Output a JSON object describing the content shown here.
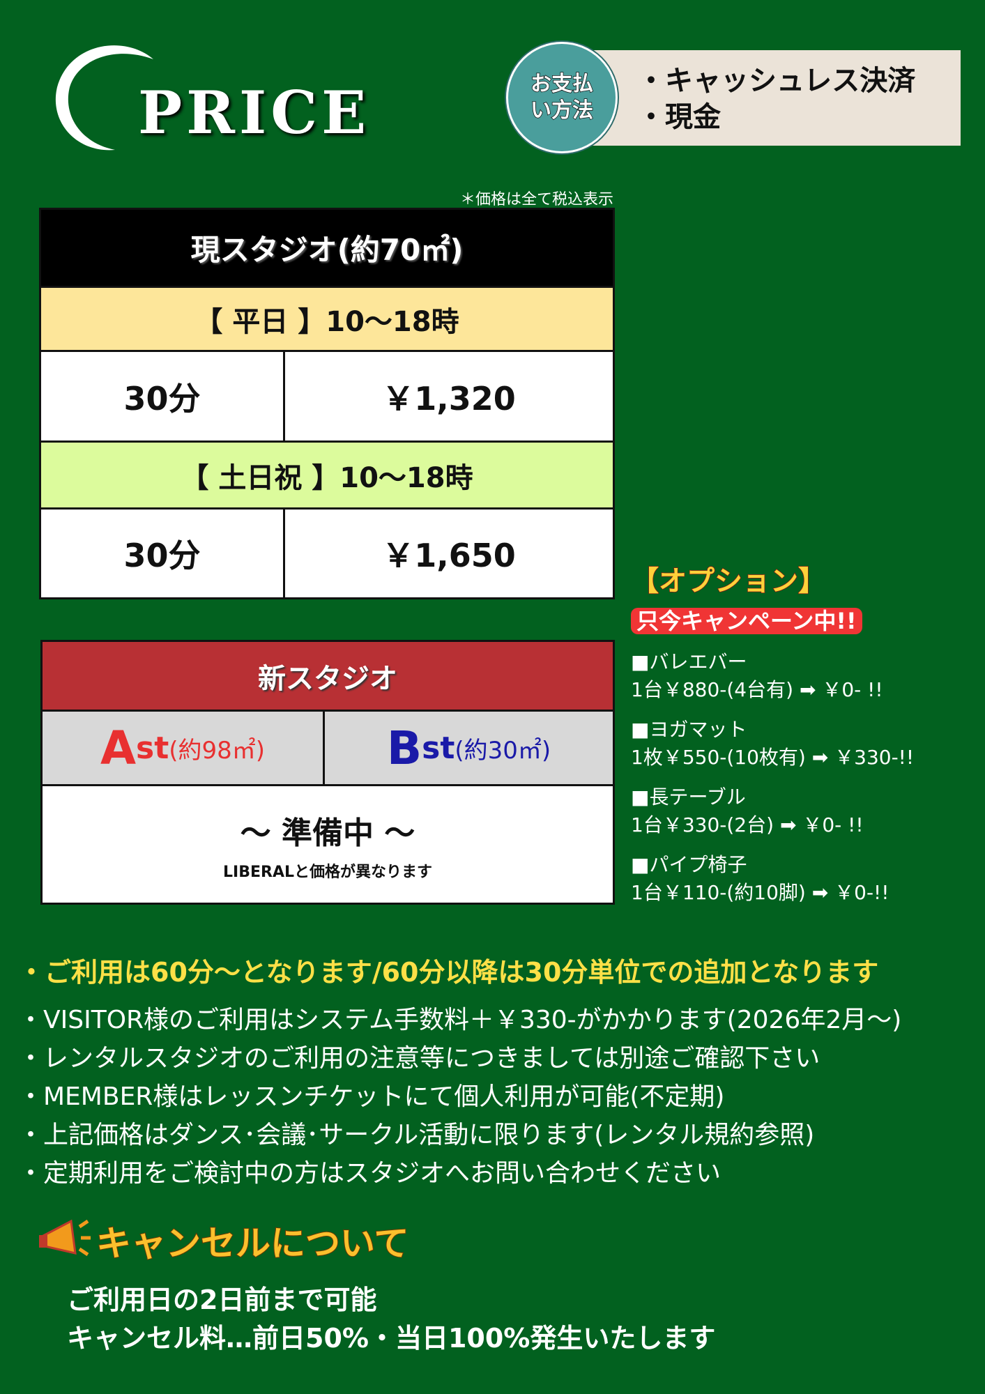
{
  "header": {
    "logo_text": "PRICE",
    "payment_label": "お支払い方法",
    "payment_label_line1": "お支払",
    "payment_label_line2": "い方法",
    "payment_methods": [
      "・キャッシュレス決済",
      "・現金"
    ]
  },
  "tax_note": "＊価格は全て税込表示",
  "current_studio": {
    "title": "現スタジオ(約70㎡)",
    "weekday": {
      "label": "【 平日 】10〜18時",
      "duration": "30分",
      "price": "￥1,320"
    },
    "weekend": {
      "label": "【 土日祝 】10〜18時",
      "duration": "30分",
      "price": "￥1,650"
    }
  },
  "new_studio": {
    "title": "新スタジオ",
    "a_letter": "A",
    "a_rest": "st",
    "a_size": "(約98㎡)",
    "b_letter": "B",
    "b_rest": "st",
    "b_size": "(約30㎡)",
    "status": "〜 準備中 〜",
    "status_note": "LIBERALと価格が異なります"
  },
  "options": {
    "title": "【オプション】",
    "campaign": "只今キャンペーン中!!",
    "items": [
      {
        "name": "■バレエバー",
        "price": " 1台￥880-(4台有)",
        "after": "￥0- !!"
      },
      {
        "name": "■ヨガマット",
        "price": " 1枚￥550-(10枚有)",
        "after": "￥330-!!"
      },
      {
        "name": "■長テーブル",
        "price": "1台￥330-(2台)",
        "after": "￥0- !!"
      },
      {
        "name": "■パイプ椅子",
        "price": "1台￥110-(約10脚)",
        "after": "￥0-!!"
      }
    ]
  },
  "notes": {
    "highlight": "・ご利用は60分〜となります/60分以降は30分単位での追加となります",
    "items": [
      "・VISITOR様のご利用はシステム手数料＋￥330-がかかります(2026年2月〜)",
      "・レンタルスタジオのご利用の注意等につきましては別途ご確認下さい",
      "・MEMBER様はレッスンチケットにて個人利用が可能(不定期)",
      "・上記価格はダンス･会議･サークル活動に限ります(レンタル規約参照)",
      "・定期利用をご検討中の方はスタジオへお問い合わせください"
    ]
  },
  "cancel": {
    "title": "キャンセルについて",
    "lines": [
      "ご利用日の2日前まで可能",
      "キャンセル料…前日50%・当日100%発生いたします"
    ]
  },
  "colors": {
    "background": "#02611f",
    "weekday": "#fde69a",
    "weekend": "#dcfb9c",
    "new_studio_header": "#b83034",
    "a_color": "#e83030",
    "b_color": "#1a1aa8",
    "highlight": "#fde047",
    "campaign": "#f03535"
  }
}
